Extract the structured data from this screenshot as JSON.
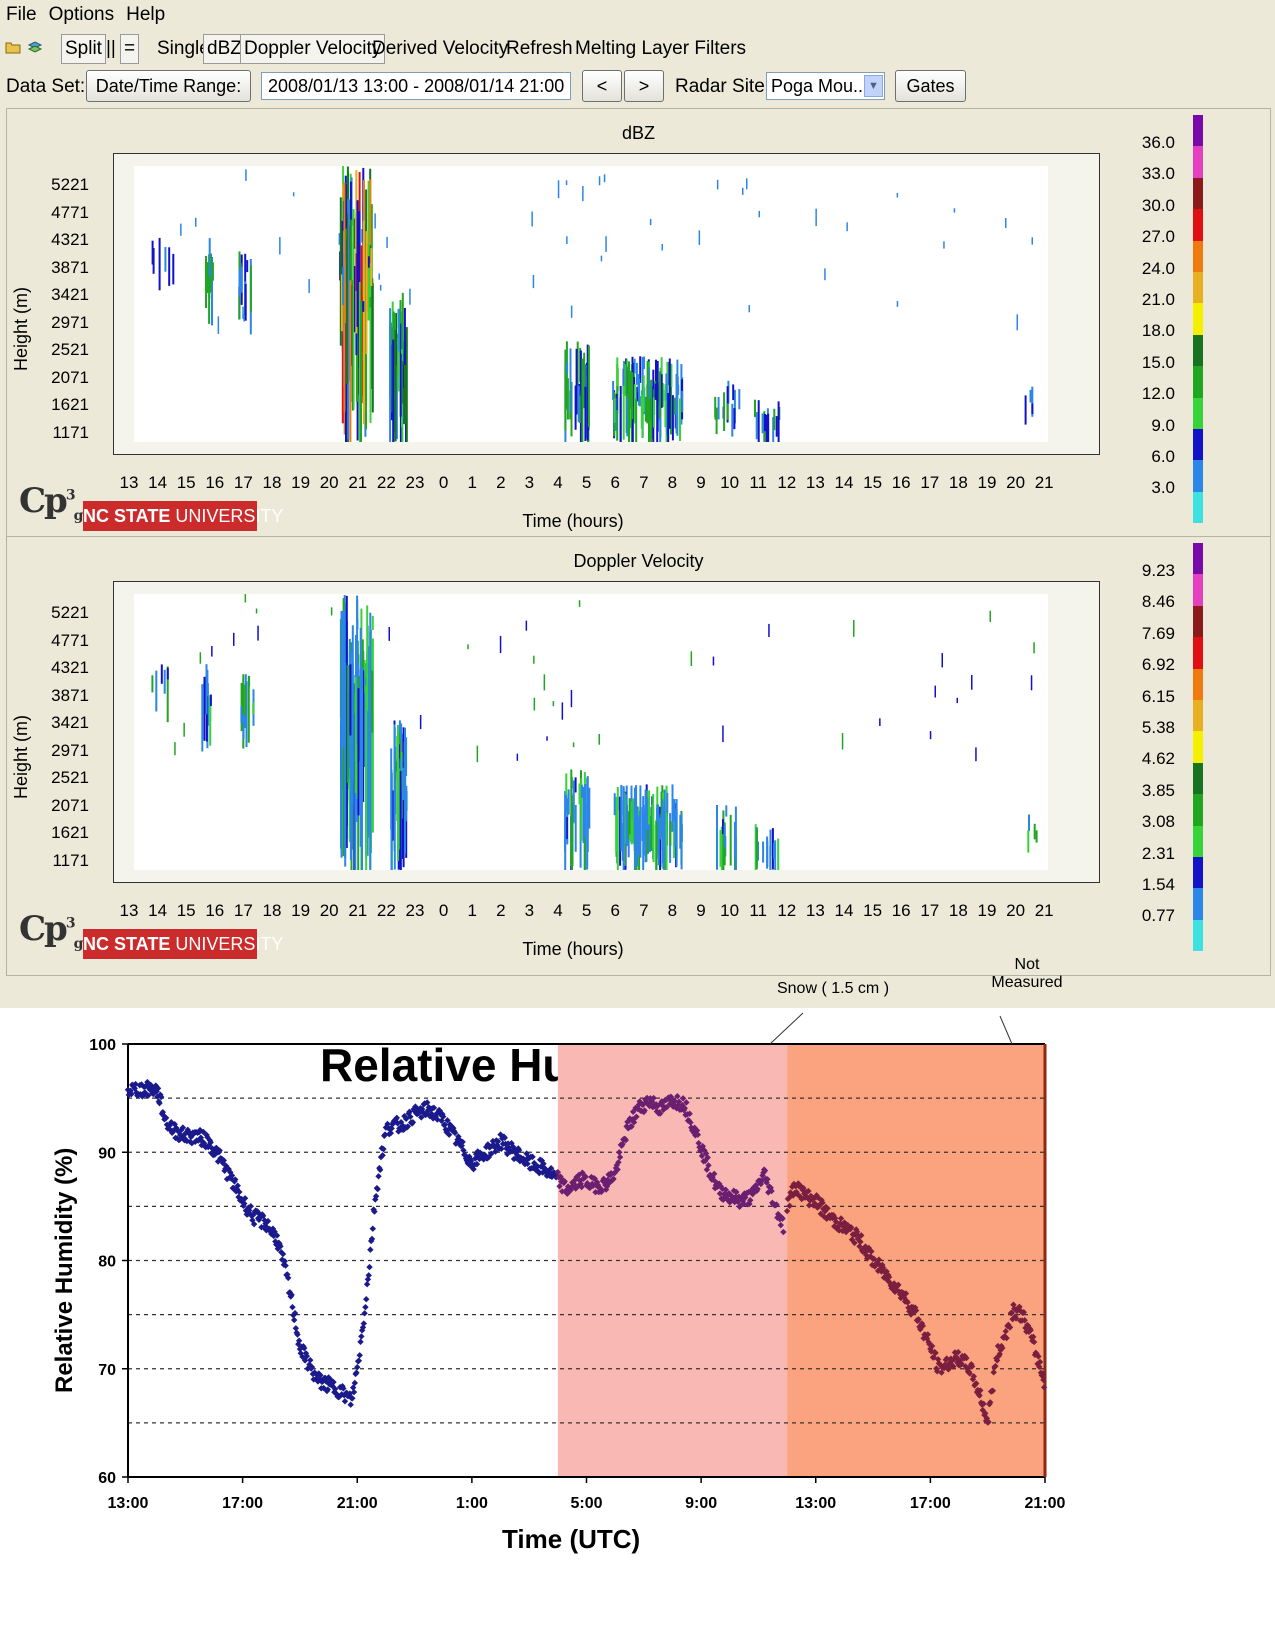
{
  "menu": {
    "items": [
      "File",
      "Options",
      "Help"
    ]
  },
  "toolbar": {
    "split": "Split",
    "parallel": "||",
    "equals": "=",
    "single": "Single",
    "dbz": "dBZ",
    "doppler": "Doppler Velocity",
    "derived": "Derived Velocity",
    "refresh": "Refresh",
    "melting": "Melting Layer Filters"
  },
  "controls": {
    "dataset_label": "Data Set:",
    "datetime_button": "Date/Time Range:",
    "range_value": "2008/01/13 13:00 - 2008/01/14 21:00",
    "prev": "<",
    "next": ">",
    "site_label": "Radar Site:",
    "site_value": "Poga Mou...",
    "gates": "Gates"
  },
  "panels": [
    {
      "title": "dBZ",
      "ylabel": "Height (m)",
      "xlabel": "Time (hours)",
      "yticks": [
        "5221",
        "4771",
        "4321",
        "3871",
        "3421",
        "2971",
        "2521",
        "2071",
        "1621",
        "1171"
      ],
      "xticks": [
        "13",
        "14",
        "15",
        "16",
        "17",
        "18",
        "19",
        "20",
        "21",
        "22",
        "23",
        "0",
        "1",
        "2",
        "3",
        "4",
        "5",
        "6",
        "7",
        "8",
        "9",
        "10",
        "11",
        "12",
        "13",
        "14",
        "15",
        "16",
        "17",
        "18",
        "19",
        "20",
        "21"
      ],
      "colorbar": [
        "36.0",
        "33.0",
        "30.0",
        "27.0",
        "24.0",
        "21.0",
        "18.0",
        "15.0",
        "12.0",
        "9.0",
        "6.0",
        "3.0"
      ]
    },
    {
      "title": "Doppler Velocity",
      "ylabel": "Height (m)",
      "xlabel": "Time (hours)",
      "yticks": [
        "5221",
        "4771",
        "4321",
        "3871",
        "3421",
        "2971",
        "2521",
        "2071",
        "1621",
        "1171"
      ],
      "xticks": [
        "13",
        "14",
        "15",
        "16",
        "17",
        "18",
        "19",
        "20",
        "21",
        "22",
        "23",
        "0",
        "1",
        "2",
        "3",
        "4",
        "5",
        "6",
        "7",
        "8",
        "9",
        "10",
        "11",
        "12",
        "13",
        "14",
        "15",
        "16",
        "17",
        "18",
        "19",
        "20",
        "21"
      ],
      "colorbar": [
        "9.23",
        "8.46",
        "7.69",
        "6.92",
        "6.15",
        "5.38",
        "4.62",
        "3.85",
        "3.08",
        "2.31",
        "1.54",
        "0.77"
      ]
    }
  ],
  "colorbar_colors": [
    "#7a0aa8",
    "#e43fbf",
    "#8b1a1a",
    "#e01010",
    "#f07a10",
    "#e6b020",
    "#f4f000",
    "#17731f",
    "#21a621",
    "#38d338",
    "#1212c8",
    "#2c86e8",
    "#3fe0e0"
  ],
  "logo": {
    "cp": "Cp",
    "sup": "3",
    "sub": "g",
    "ncstate_bold": "NC STATE",
    "ncstate_rest": " UNIVERSITY"
  },
  "chart_data": {
    "type": "scatter",
    "title": "Relative Humidity",
    "xlabel": "Time (UTC)",
    "ylabel": "Relative Humidity (%)",
    "ylim": [
      60,
      100
    ],
    "yticks": [
      60,
      70,
      80,
      90,
      100
    ],
    "xticks": [
      "13:00",
      "17:00",
      "21:00",
      "1:00",
      "5:00",
      "9:00",
      "13:00",
      "17:00",
      "21:00"
    ],
    "xlim_hours": [
      0,
      32
    ],
    "grid": "horizontal dashed every 5%",
    "annotations": [
      "Snow ( 1.5 cm )",
      "Not Measured"
    ],
    "shaded_regions": [
      {
        "from_hours": 15,
        "to_hours": 23,
        "color": "#f9b8b4"
      },
      {
        "from_hours": 23,
        "to_hours": 32,
        "color": "#fba27e"
      }
    ],
    "series": [
      {
        "color": "#1b1a8c",
        "x": [
          0,
          0.5,
          1,
          1.1,
          1.3,
          1.6,
          2,
          2.4,
          2.8,
          3.2,
          3.6,
          4,
          4.4,
          4.8,
          5.2,
          5.5,
          5.8,
          6,
          6.3,
          6.6,
          7,
          7.4,
          7.8,
          8,
          8.2,
          8.4,
          8.6,
          8.8,
          9,
          9.2,
          9.5,
          10,
          10.5,
          11,
          11.5,
          12,
          12.5,
          13,
          13.5,
          14,
          14.5,
          15
        ],
        "y": [
          95.8,
          95.8,
          95.8,
          95,
          93,
          92,
          91.5,
          91.5,
          91,
          89.5,
          87.5,
          85.5,
          84,
          83.5,
          82,
          79,
          75,
          72,
          70.5,
          69,
          68.5,
          68,
          67,
          70,
          74,
          79,
          85,
          89,
          92,
          92.5,
          92.5,
          93.5,
          94,
          93,
          91,
          89,
          90,
          91,
          90,
          89,
          88.5,
          87.5
        ]
      },
      {
        "color": "#6a1f70",
        "x": [
          15,
          15.3,
          15.8,
          16.2,
          16.6,
          17,
          17.4,
          17.8,
          18.2,
          18.6,
          19,
          19.4,
          19.8,
          20.2,
          20.6,
          21,
          21.4,
          21.8,
          22.2,
          22.6,
          22.9
        ],
        "y": [
          87.5,
          86.5,
          87.5,
          87,
          87,
          88,
          92,
          94,
          94.8,
          94,
          94.8,
          94.5,
          92,
          89,
          86.5,
          86,
          85.5,
          86,
          88,
          85,
          83
        ]
      },
      {
        "color": "#7a1f40",
        "x": [
          23,
          23.3,
          23.6,
          24,
          24.5,
          25,
          25.5,
          26,
          26.5,
          27,
          27.5,
          28,
          28.3,
          28.6,
          29,
          29.4,
          29.8,
          30,
          30.3,
          30.6,
          30.9,
          31.2,
          31.5,
          31.8,
          32
        ],
        "y": [
          85,
          87,
          86,
          85.5,
          84,
          83,
          82,
          80,
          78.5,
          77,
          75,
          72,
          70,
          70.5,
          71,
          70,
          67,
          65,
          71,
          73,
          75.5,
          75,
          73,
          70.5,
          68.5
        ]
      }
    ]
  }
}
